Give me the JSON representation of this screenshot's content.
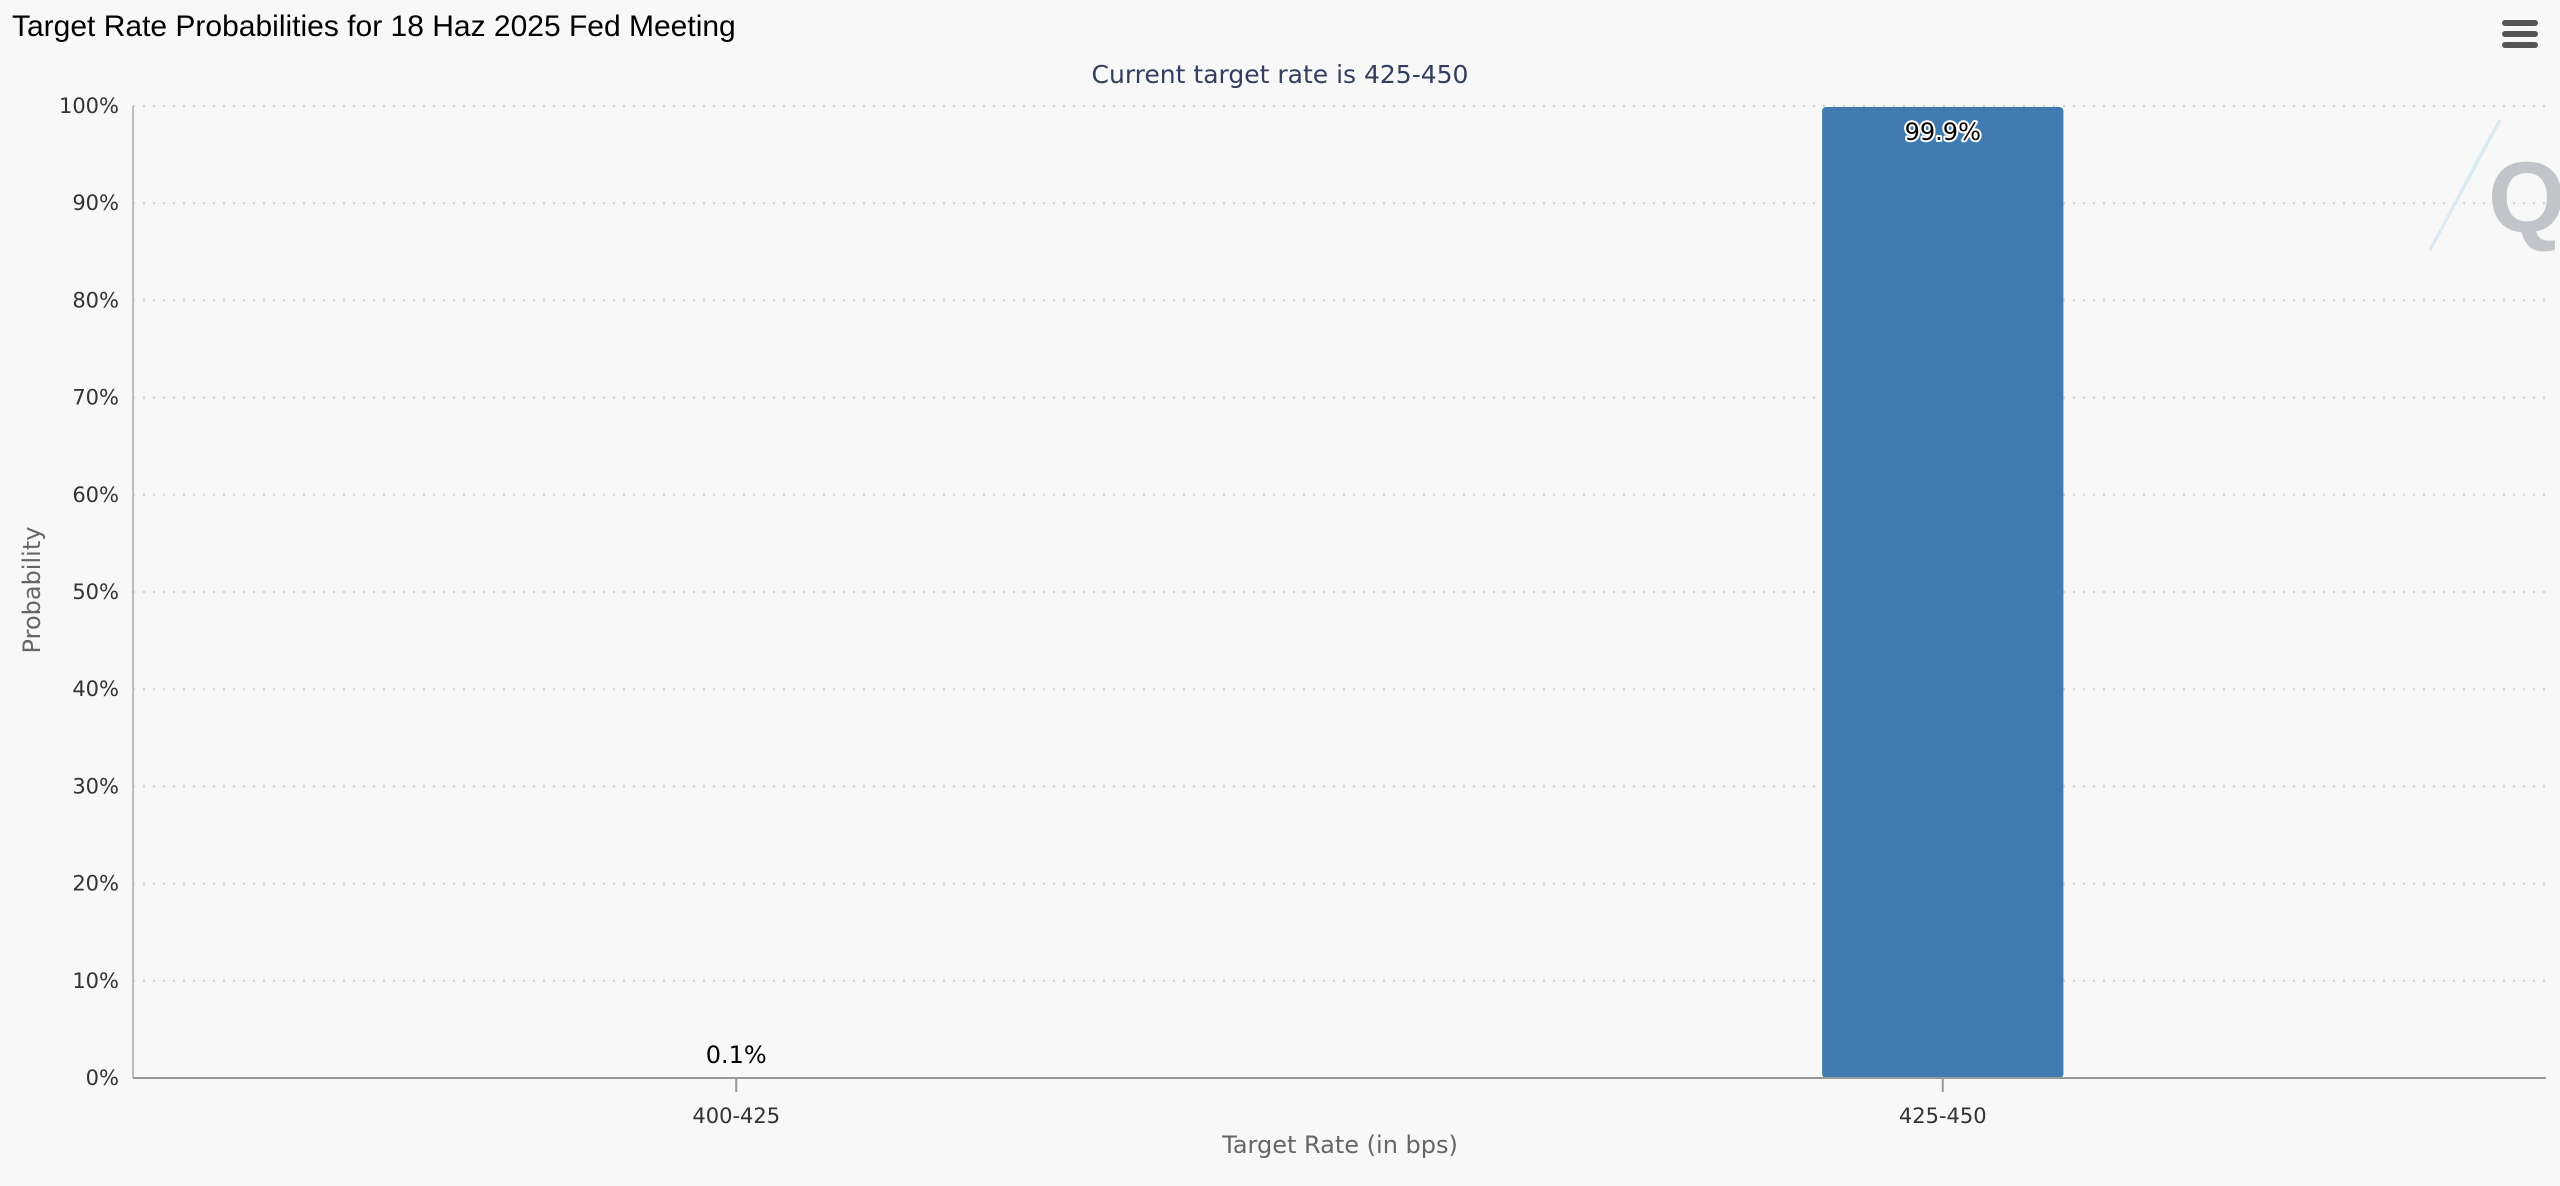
{
  "header": {
    "title": "Target Rate Probabilities for 18 Haz 2025 Fed Meeting",
    "menu_icon": "hamburger-menu-icon"
  },
  "chart_data": {
    "type": "bar",
    "title": "Target Rate Probabilities for 18 Haz 2025 Fed Meeting",
    "subtitle": "Current target rate is 425-450",
    "categories": [
      "400-425",
      "425-450"
    ],
    "values": [
      0.1,
      99.9
    ],
    "data_labels": [
      "0.1%",
      "99.9%"
    ],
    "xlabel": "Target Rate (in bps)",
    "ylabel": "Probability",
    "ylim": [
      0,
      100
    ],
    "y_ticks": [
      "0%",
      "10%",
      "20%",
      "30%",
      "40%",
      "50%",
      "60%",
      "70%",
      "80%",
      "90%",
      "100%"
    ],
    "y_tick_values": [
      0,
      10,
      20,
      30,
      40,
      50,
      60,
      70,
      80,
      90,
      100
    ],
    "grid": true,
    "bar_color": "#3f7bb0",
    "legend": "none"
  },
  "watermark": {
    "letter": "Q",
    "icon": "quikstrike-logo-icon",
    "color": "#b8bcc0"
  }
}
